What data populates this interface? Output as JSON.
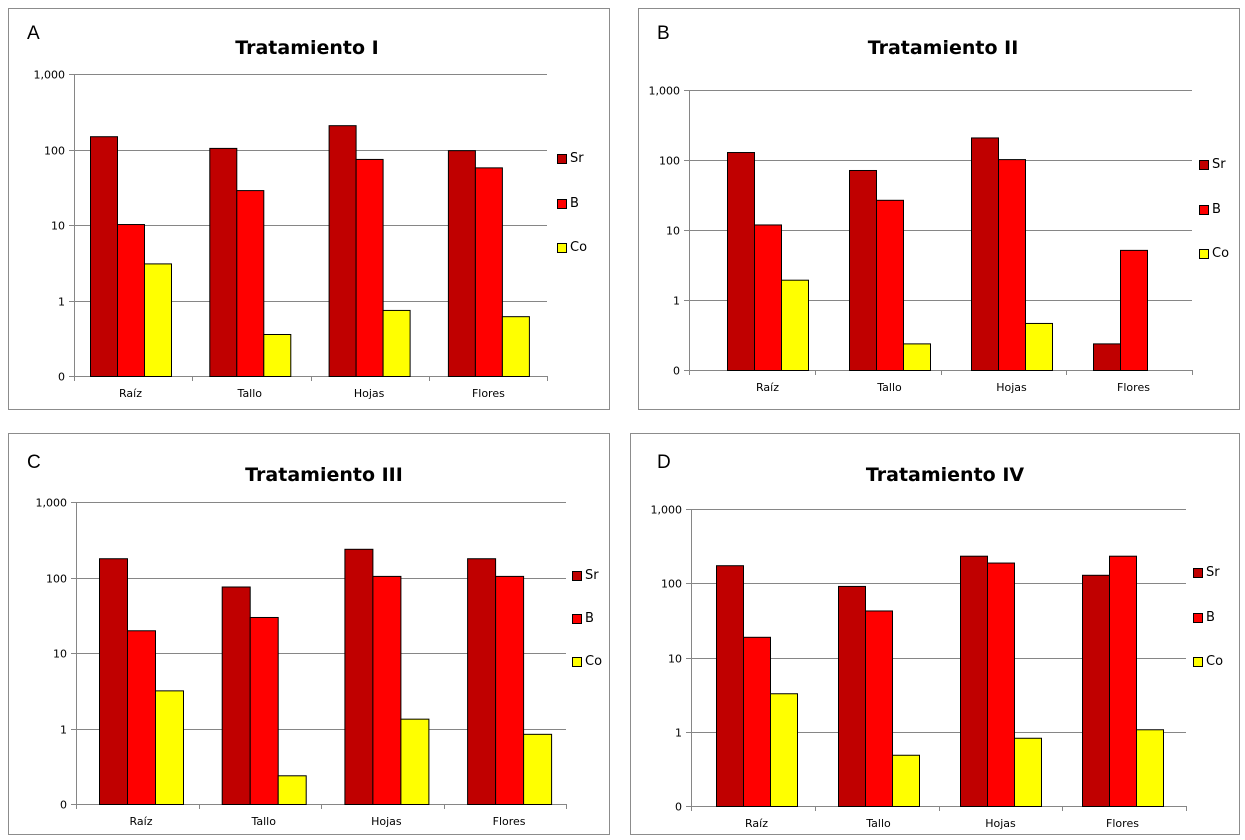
{
  "colors": {
    "Sr": "#c00000",
    "B": "#ff0000",
    "Co": "#ffff00",
    "grid": "#868686",
    "axis": "#868686"
  },
  "chart_data": [
    {
      "type": "bar",
      "panel_letter": "A",
      "title": "Tratamiento I",
      "categories": [
        "Raíz",
        "Tallo",
        "Hojas",
        "Flores"
      ],
      "y_scale": "log",
      "ylim": [
        0.1,
        1000
      ],
      "y_ticks": [
        0.1,
        1,
        10,
        100,
        1000
      ],
      "y_tick_labels": [
        "0",
        "1",
        "10",
        "100",
        "1,000"
      ],
      "grid": true,
      "legend_position": "right",
      "series": [
        {
          "name": "Sr",
          "values": [
            150,
            105,
            210,
            98
          ]
        },
        {
          "name": "B",
          "values": [
            10.3,
            29,
            75,
            58
          ]
        },
        {
          "name": "Co",
          "values": [
            3.1,
            0.36,
            0.75,
            0.62
          ]
        }
      ]
    },
    {
      "type": "bar",
      "panel_letter": "B",
      "title": "Tratamiento II",
      "categories": [
        "Raíz",
        "Tallo",
        "Hojas",
        "Flores"
      ],
      "y_scale": "log",
      "ylim": [
        0.1,
        1000
      ],
      "y_ticks": [
        0.1,
        1,
        10,
        100,
        1000
      ],
      "y_tick_labels": [
        "0",
        "1",
        "10",
        "100",
        "1,000"
      ],
      "grid": true,
      "legend_position": "right",
      "series": [
        {
          "name": "Sr",
          "values": [
            130,
            72,
            210,
            0.24
          ]
        },
        {
          "name": "B",
          "values": [
            12,
            27,
            103,
            5.2
          ]
        },
        {
          "name": "Co",
          "values": [
            1.95,
            0.24,
            0.47,
            null
          ]
        }
      ]
    },
    {
      "type": "bar",
      "panel_letter": "C",
      "title": "Tratamiento III",
      "categories": [
        "Raíz",
        "Tallo",
        "Hojas",
        "Flores"
      ],
      "y_scale": "log",
      "ylim": [
        0.1,
        1000
      ],
      "y_ticks": [
        0.1,
        1,
        10,
        100,
        1000
      ],
      "y_tick_labels": [
        "0",
        "1",
        "10",
        "100",
        "1,000"
      ],
      "grid": true,
      "legend_position": "right",
      "series": [
        {
          "name": "Sr",
          "values": [
            180,
            76,
            240,
            180
          ]
        },
        {
          "name": "B",
          "values": [
            20,
            30,
            105,
            105
          ]
        },
        {
          "name": "Co",
          "values": [
            3.2,
            0.24,
            1.35,
            0.85
          ]
        }
      ]
    },
    {
      "type": "bar",
      "panel_letter": "D",
      "title": "Tratamiento IV",
      "categories": [
        "Raíz",
        "Tallo",
        "Hojas",
        "Flores"
      ],
      "y_scale": "log",
      "ylim": [
        0.1,
        1000
      ],
      "y_ticks": [
        0.1,
        1,
        10,
        100,
        1000
      ],
      "y_tick_labels": [
        "0",
        "1",
        "10",
        "100",
        "1,000"
      ],
      "grid": true,
      "legend_position": "right",
      "series": [
        {
          "name": "Sr",
          "values": [
            175,
            92,
            235,
            130
          ]
        },
        {
          "name": "B",
          "values": [
            19,
            43,
            190,
            235
          ]
        },
        {
          "name": "Co",
          "values": [
            3.3,
            0.49,
            0.83,
            1.08
          ]
        }
      ]
    }
  ]
}
